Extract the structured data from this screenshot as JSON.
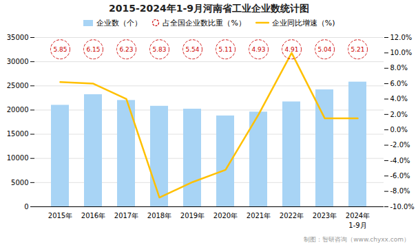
{
  "chart_data": {
    "type": "bar",
    "title": "2015-2024年1-9月河南省工业企业数统计图",
    "caption": "制图：智研咨询（www.chyxx.com）",
    "categories": [
      "2015年",
      "2016年",
      "2017年",
      "2018年",
      "2019年",
      "2020年",
      "2021年",
      "2022年",
      "2023年",
      "2024年"
    ],
    "annotations": [
      {
        "text": "1-9月",
        "x": "2024年"
      }
    ],
    "series": [
      {
        "name": "企业数（个）",
        "type": "bar",
        "color": "#A8D4F5",
        "values": [
          21000,
          23200,
          22000,
          20800,
          20200,
          18800,
          19600,
          21700,
          24200,
          25800
        ]
      },
      {
        "name": "占全国企业数比重（%）",
        "type": "label",
        "color": "#CC0000",
        "marker": "circle",
        "line_style": "dashed",
        "values": [
          5.85,
          6.15,
          6.23,
          5.83,
          5.54,
          5.11,
          4.93,
          4.91,
          5.04,
          5.21
        ]
      },
      {
        "name": "企业同比增速（%)",
        "type": "line",
        "color": "#FFC000",
        "axis": "y2",
        "values": [
          6.2,
          6.0,
          4.0,
          -8.8,
          -6.8,
          -5.2,
          2.0,
          10.0,
          1.5,
          1.5
        ]
      }
    ],
    "ylim": [
      0,
      35000
    ],
    "yticks": [
      0,
      5000,
      10000,
      15000,
      20000,
      25000,
      30000,
      35000
    ],
    "y2lim": [
      -10.0,
      12.0
    ],
    "y2ticks": [
      {
        "value": -10.0,
        "label": "-10.0%"
      },
      {
        "value": -8.0,
        "label": "-8.0%"
      },
      {
        "value": -6.0,
        "label": "-6.0%"
      },
      {
        "value": -4.0,
        "label": "-4.0%"
      },
      {
        "value": -2.0,
        "label": "-2.0%"
      },
      {
        "value": 0.0,
        "label": "0.0%"
      },
      {
        "value": 2.0,
        "label": "2.0%"
      },
      {
        "value": 4.0,
        "label": "4.0%"
      },
      {
        "value": 6.0,
        "label": "6.0%"
      },
      {
        "value": 8.0,
        "label": "8.0%"
      },
      {
        "value": 10.0,
        "label": "10.0%"
      },
      {
        "value": 12.0,
        "label": "12.0%"
      }
    ],
    "grid": true,
    "legend": "top"
  }
}
